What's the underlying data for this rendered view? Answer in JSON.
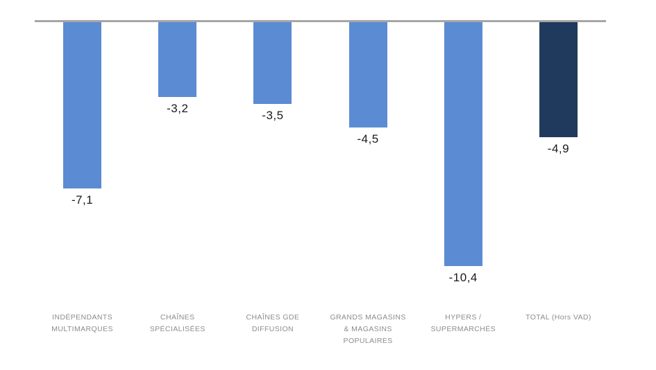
{
  "chart_data": {
    "type": "bar",
    "orientation": "vertical-negative",
    "title": "",
    "xlabel": "",
    "ylabel": "",
    "ylim": [
      -11,
      0
    ],
    "grid": false,
    "legend": false,
    "categories": [
      "INDÉPENDANTS MULTIMARQUES",
      "CHAÎNES SPÉCIALISÉES",
      "CHAÎNES GDE DIFFUSION",
      "GRANDS MAGASINS & MAGASINS POPULAIRES",
      "HYPERS / SUPERMARCHÉS",
      "TOTAL (Hors VAD)"
    ],
    "category_labels": [
      "INDÉPENDANTS\nMULTIMARQUES",
      "CHAÎNES\nSPÉCIALISÉES",
      "CHAÎNES GDE\nDIFFUSION",
      "GRANDS MAGASINS\n& MAGASINS\nPOPULAIRES",
      "HYPERS /\nSUPERMARCHÉS",
      "TOTAL (Hors VAD)"
    ],
    "values": [
      -7.1,
      -3.2,
      -3.5,
      -4.5,
      -10.4,
      -4.9
    ],
    "value_labels": [
      "-7,1",
      "-3,2",
      "-3,5",
      "-4,5",
      "-10,4",
      "-4,9"
    ],
    "bar_colors": [
      "#5b8bd2",
      "#5b8bd2",
      "#5b8bd2",
      "#5b8bd2",
      "#5b8bd2",
      "#1f3a5c"
    ],
    "axis_line_color": "#a6a6a6",
    "category_label_color": "#8c8c8c",
    "value_label_color": "#1a1a1a"
  }
}
